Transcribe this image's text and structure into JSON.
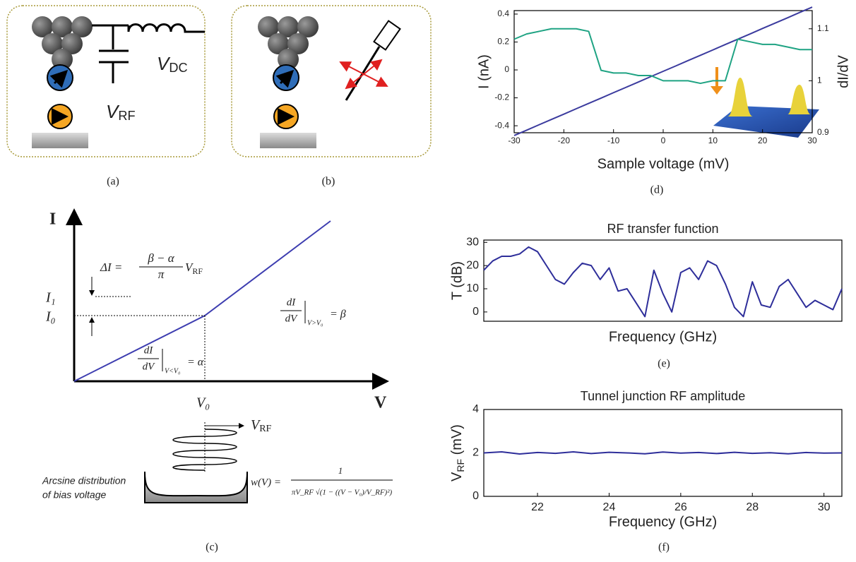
{
  "panels": {
    "a": {
      "label": "(a)",
      "v_dc": [
        "V",
        "DC"
      ],
      "v_rf": [
        "V",
        "RF"
      ]
    },
    "b": {
      "label": "(b)"
    },
    "c": {
      "label": "(c)",
      "axis_i": "I",
      "axis_v": "V",
      "i1": "I₁",
      "i0": "I₀",
      "v0": "V₀",
      "delta_i": {
        "lhs": "ΔI =",
        "num": "β − α",
        "den": "π",
        "rhs": [
          "V",
          "RF"
        ]
      },
      "slope_hi": {
        "num": "dI",
        "den": "dV",
        "cond": "V>V₀",
        "rhs": "= β"
      },
      "slope_lo": {
        "num": "dI",
        "den": "dV",
        "cond": "V<V₀",
        "rhs": "= α"
      },
      "v_rf": [
        "V",
        "RF"
      ],
      "caption": [
        "Arcsine distribution",
        "of bias voltage"
      ],
      "w": {
        "lhs": "w(V) =",
        "num": "1",
        "den": "πV_RF √(1 − ((V − V₀)/V_RF)²)"
      }
    },
    "d": {
      "label": "(d)"
    },
    "e": {
      "label": "(e)"
    },
    "f": {
      "label": "(f)"
    }
  },
  "chart_data": [
    {
      "type": "line",
      "xlabel": "Sample voltage (mV)",
      "x": [
        -30,
        -27.5,
        -25,
        -22.5,
        -20,
        -17.5,
        -15,
        -12.5,
        -10,
        -7.5,
        -5,
        -2.5,
        0,
        2.5,
        5,
        7.5,
        10,
        12.5,
        15,
        17.5,
        20,
        22.5,
        25,
        27.5,
        30
      ],
      "series": [
        {
          "name": "I (nA)",
          "color": "#3b3b9e",
          "values": [
            -0.47,
            -0.432,
            -0.393,
            -0.355,
            -0.317,
            -0.278,
            -0.24,
            -0.202,
            -0.163,
            -0.125,
            -0.087,
            -0.048,
            -0.01,
            0.028,
            0.067,
            0.105,
            0.143,
            0.182,
            0.22,
            0.258,
            0.297,
            0.335,
            0.373,
            0.412,
            0.45
          ]
        },
        {
          "name": "dI/dV",
          "color": "#1fa383",
          "axis": "y2",
          "values": [
            1.08,
            1.09,
            1.095,
            1.1,
            1.1,
            1.1,
            1.095,
            1.02,
            1.015,
            1.015,
            1.01,
            1.01,
            1.0,
            1.0,
            1.0,
            0.995,
            1.0,
            1.0,
            1.08,
            1.075,
            1.07,
            1.07,
            1.065,
            1.06,
            1.06
          ]
        }
      ],
      "xlim": [
        -30,
        30
      ],
      "xticks": [
        -30,
        -20,
        -10,
        0,
        10,
        20,
        30
      ],
      "ylim": [
        -0.45,
        0.425
      ],
      "yticks": [
        -0.4,
        -0.2,
        0,
        0.2,
        0.4
      ],
      "y2lim": [
        0.9,
        1.135
      ],
      "y2ticks": [
        0.9,
        1,
        1.1
      ]
    },
    {
      "type": "line",
      "title": "RF transfer function",
      "xlabel": "Frequency (GHz)",
      "ylabel": "T (dB)",
      "color": "#2e2e9a",
      "x": [
        20.5,
        20.75,
        21,
        21.25,
        21.5,
        21.75,
        22,
        22.25,
        22.5,
        22.75,
        23,
        23.25,
        23.5,
        23.75,
        24,
        24.25,
        24.5,
        24.75,
        25,
        25.25,
        25.5,
        25.75,
        26,
        26.25,
        26.5,
        26.75,
        27,
        27.25,
        27.5,
        27.75,
        28,
        28.25,
        28.5,
        28.75,
        29,
        29.25,
        29.5,
        29.75,
        30,
        30.25,
        30.5
      ],
      "values": [
        18,
        22,
        24,
        24,
        25,
        28,
        26,
        20,
        14,
        12,
        17,
        21,
        20,
        14,
        19,
        9,
        10,
        4,
        -2,
        18,
        8,
        0,
        17,
        19,
        14,
        22,
        20,
        12,
        2,
        -2,
        13,
        3,
        2,
        11,
        14,
        8,
        2,
        5,
        3,
        1,
        10
      ],
      "xlim": [
        20.5,
        30.5
      ],
      "ylim": [
        -4,
        31
      ],
      "yticks": [
        0,
        10,
        20,
        30
      ]
    },
    {
      "type": "line",
      "title": "Tunnel junction RF amplitude",
      "xlabel": "Frequency (GHz)",
      "ylabel": [
        "V",
        "RF",
        " (mV)"
      ],
      "color": "#2e2e9a",
      "x": [
        20.5,
        21,
        21.5,
        22,
        22.5,
        23,
        23.5,
        24,
        24.5,
        25,
        25.5,
        26,
        26.5,
        27,
        27.5,
        28,
        28.5,
        29,
        29.5,
        30,
        30.5
      ],
      "values": [
        2.0,
        2.05,
        1.95,
        2.02,
        1.98,
        2.05,
        1.97,
        2.03,
        2.0,
        1.96,
        2.04,
        1.99,
        2.02,
        1.97,
        2.03,
        1.98,
        2.01,
        1.96,
        2.02,
        1.99,
        2.0
      ],
      "xlim": [
        20.5,
        30.5
      ],
      "ylim": [
        0,
        4
      ],
      "yticks": [
        0,
        2,
        4
      ],
      "xticks": [
        22,
        24,
        26,
        28,
        30
      ]
    }
  ]
}
